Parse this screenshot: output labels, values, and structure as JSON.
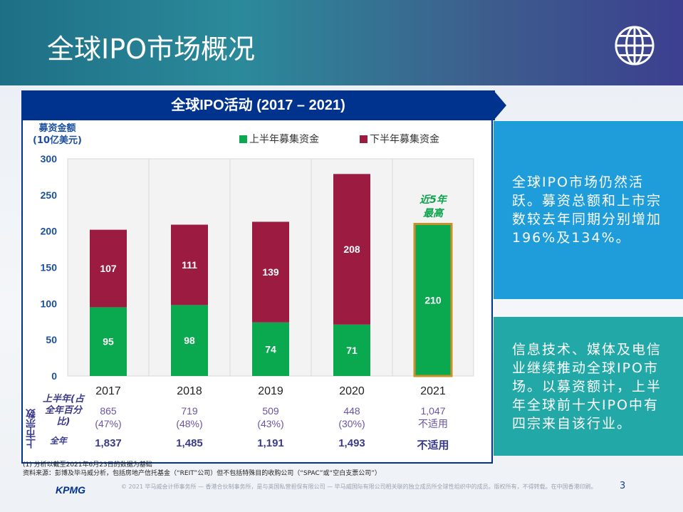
{
  "header": {
    "title": "全球IPO市场概况",
    "icon": "globe-icon"
  },
  "panel": {
    "title": "全球IPO活动 (2017 – 2021)",
    "ylabel_line1": "募资金额",
    "ylabel_line2": "(10亿美元)"
  },
  "chart_data": {
    "type": "bar",
    "stacked": true,
    "categories": [
      "2017",
      "2018",
      "2019",
      "2020",
      "2021"
    ],
    "series": [
      {
        "name": "上半年募集资金",
        "color": "#0aa84f",
        "values": [
          95,
          98,
          74,
          71,
          210
        ]
      },
      {
        "name": "下半年募集资金",
        "color": "#9b1b41",
        "values": [
          107,
          111,
          139,
          208,
          null
        ]
      }
    ],
    "ylim": [
      0,
      300
    ],
    "yticks": [
      0,
      50,
      100,
      150,
      200,
      250,
      300
    ],
    "annotation": {
      "text_line1": "近5年",
      "text_line2": "最高",
      "category": "2021"
    },
    "highlight_color": "#c8922a",
    "grid": true
  },
  "table": {
    "row_label": "上市宗数",
    "h1_label": "上半年(占全年百分比)",
    "fy_label": "全年",
    "h1": [
      "865",
      "719",
      "509",
      "448",
      "1,047"
    ],
    "h1_pct": [
      "(47%)",
      "(48%)",
      "(43%)",
      "(30%)",
      "不适用"
    ],
    "full_year": [
      "1,837",
      "1,485",
      "1,191",
      "1,493",
      "不适用"
    ]
  },
  "side": {
    "box1": "全球IPO市场仍然活跃。募资总额和上市宗数较去年同期分别增加196%及134%。",
    "box2": "信息技术、媒体及电信业继续推动全球IPO市场。以募资额计，上半年全球前十大IPO中有四宗来自该行业。"
  },
  "notes": {
    "line1": "(1) 分析以截至2021年6月23日的数据为基础",
    "line2": "资料来源：彭博及毕马威分析，包括房地产信托基金（“REIT”公司）但不包括特殊目的收购公司（“SPAC”或“空白支票公司”）"
  },
  "footer": {
    "logo": "KPMG",
    "copyright": "© 2021 毕马威会计师事务所 — 香港合伙制事务所，是与英国私营担保有限公司 — 毕马威国际有限公司相关联的独立成员所全球性组织中的成员。版权所有，不得转载。在中国香港印刷。",
    "page": "3"
  }
}
